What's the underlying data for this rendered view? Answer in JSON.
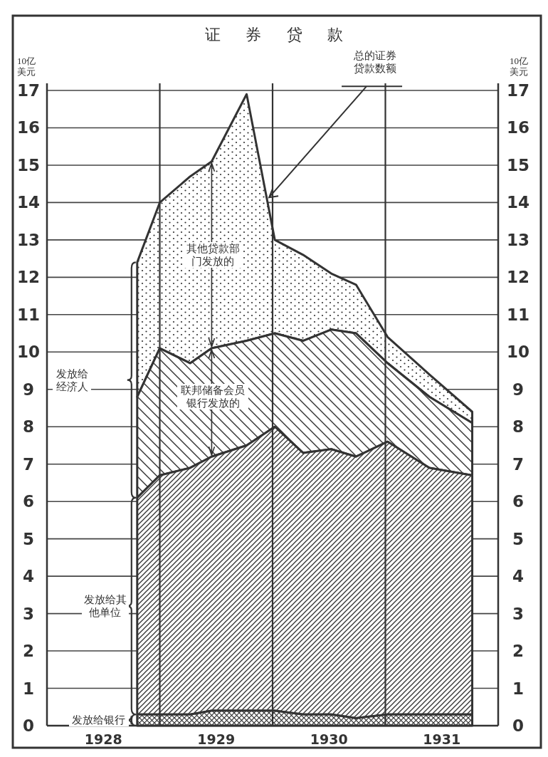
{
  "chart_data": {
    "type": "area",
    "title": "证券贷款",
    "ylabel": "10亿美元",
    "y2label": "10亿美元",
    "x": [
      1928.8,
      1929.0,
      1929.27,
      1929.46,
      1929.77,
      1930.02,
      1930.27,
      1930.52,
      1930.74,
      1931.02,
      1931.39,
      1931.77
    ],
    "stacked": true,
    "series": [
      {
        "name": "发放给银行",
        "color": "#333333",
        "values": [
          0.3,
          0.3,
          0.3,
          0.4,
          0.4,
          0.4,
          0.3,
          0.3,
          0.2,
          0.3,
          0.3,
          0.3
        ]
      },
      {
        "name": "发放给其他单位",
        "color": "#333333",
        "values": [
          5.8,
          6.4,
          6.6,
          6.8,
          7.1,
          7.6,
          7.0,
          7.1,
          7.0,
          7.3,
          6.6,
          6.4
        ]
      },
      {
        "name": "联邦储备会员银行发放的",
        "color": "#333333",
        "values": [
          2.7,
          3.4,
          2.8,
          2.9,
          2.8,
          2.5,
          3.0,
          3.2,
          3.3,
          2.1,
          1.9,
          1.4
        ]
      },
      {
        "name": "其他贷款部门发放的",
        "color": "#333333",
        "values": [
          3.6,
          3.9,
          5.0,
          5.0,
          6.6,
          2.5,
          2.3,
          1.5,
          1.3,
          0.7,
          0.6,
          0.3
        ]
      }
    ],
    "annotations": [
      {
        "text": "总的证券贷款数额",
        "x": 1929.95,
        "y": 14.1
      },
      "发放给经济人"
    ],
    "xlim": [
      1928,
      1932
    ],
    "xticks": [
      {
        "value": 1928.5,
        "label": "1928"
      },
      {
        "value": 1929.5,
        "label": "1929"
      },
      {
        "value": 1930.5,
        "label": "1930"
      },
      {
        "value": 1931.5,
        "label": "1931"
      }
    ],
    "ylim": [
      0,
      17
    ],
    "yticks": [
      0,
      1,
      2,
      3,
      4,
      5,
      6,
      7,
      8,
      9,
      10,
      11,
      12,
      13,
      14,
      15,
      16,
      17
    ],
    "y2lim": [
      0,
      17
    ],
    "y2ticks": [
      0,
      1,
      2,
      3,
      4,
      5,
      6,
      7,
      8,
      9,
      10,
      11,
      12,
      13,
      14,
      15,
      16,
      17
    ],
    "ref_lines": [
      {
        "axis": "x",
        "value": 1929
      },
      {
        "axis": "x",
        "value": 1930
      },
      {
        "axis": "x",
        "value": 1931
      }
    ],
    "grid": "y"
  }
}
